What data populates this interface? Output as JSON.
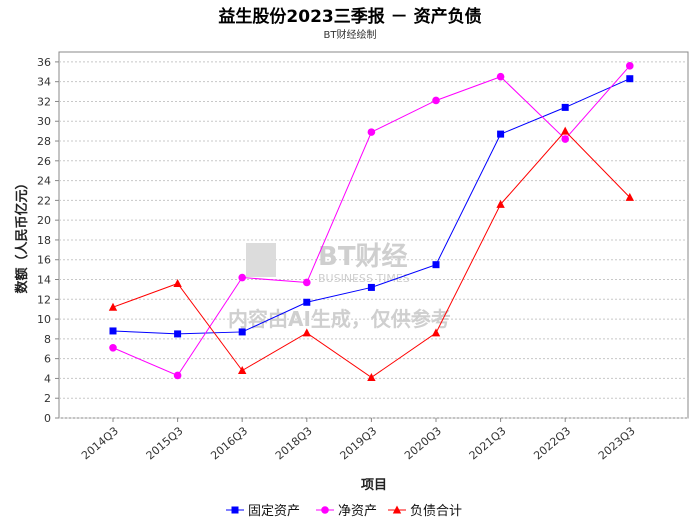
{
  "chart_data": {
    "type": "line",
    "title": "益生股份2023三季报 － 资产负债",
    "subtitle": "BT财经绘制",
    "xlabel": "项目",
    "ylabel": "数额（人民币亿元）",
    "categories": [
      "2014Q3",
      "2015Q3",
      "2016Q3",
      "2018Q3",
      "2019Q3",
      "2020Q3",
      "2021Q3",
      "2022Q3",
      "2023Q3"
    ],
    "ylim": [
      0,
      37
    ],
    "yticks": [
      0,
      2,
      4,
      6,
      8,
      10,
      12,
      14,
      16,
      18,
      20,
      22,
      24,
      26,
      28,
      30,
      32,
      34,
      36
    ],
    "grid": true,
    "legend_position": "bottom",
    "series": [
      {
        "name": "固定资产",
        "color": "#0000ff",
        "marker": "square",
        "values": [
          8.8,
          8.5,
          8.7,
          11.7,
          13.2,
          15.5,
          28.7,
          31.4,
          34.3
        ]
      },
      {
        "name": "净资产",
        "color": "#ff00ff",
        "marker": "circle",
        "values": [
          7.1,
          4.3,
          14.2,
          13.7,
          28.9,
          32.1,
          34.5,
          28.2,
          35.6
        ]
      },
      {
        "name": "负债合计",
        "color": "#ff0000",
        "marker": "triangle",
        "values": [
          11.2,
          13.6,
          4.8,
          8.6,
          4.1,
          8.6,
          21.6,
          29.0,
          22.3
        ]
      }
    ]
  },
  "watermark": {
    "brand": "BT财经",
    "brand_en": "BUSINESS TIMES",
    "notice": "内容由AI生成，仅供参考"
  }
}
